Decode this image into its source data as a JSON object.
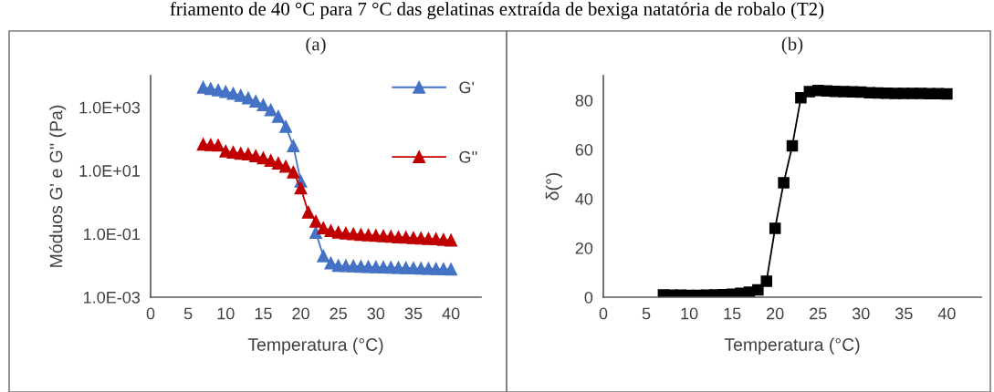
{
  "chart_data": [
    {
      "type": "line",
      "title": "(a)",
      "xlabel": "Temperatura (°C)",
      "ylabel": "Móduos G' e G'' (Pa)",
      "annotations": [
        "friamento de 40 °C para 7 °C das gelatinas extraída de bexiga natatória de robalo (T2)"
      ],
      "x": [
        7,
        8,
        9,
        10,
        11,
        12,
        13,
        14,
        15,
        16,
        17,
        18,
        19,
        20,
        21,
        22,
        23,
        24,
        25,
        26,
        27,
        28,
        29,
        30,
        31,
        32,
        33,
        34,
        35,
        36,
        37,
        38,
        39,
        40
      ],
      "series": [
        {
          "name": "G'",
          "color": "#4472c4",
          "values": [
            4300,
            3900,
            3500,
            3100,
            2750,
            2340,
            1950,
            1550,
            1200,
            830,
            510,
            245,
            60,
            4.6,
            null,
            0.11,
            0.02,
            0.012,
            0.01,
            0.0098,
            0.0096,
            0.0094,
            0.0092,
            0.009,
            0.0089,
            0.0087,
            0.0086,
            0.0084,
            0.0083,
            0.0082,
            0.008,
            0.0079,
            0.0078,
            0.0076
          ]
        },
        {
          "name": "G''",
          "color": "#c00000",
          "values": [
            68,
            65,
            63,
            41,
            38,
            35,
            33,
            29,
            25,
            21,
            17,
            13.5,
            8.9,
            2.8,
            0.48,
            0.25,
            0.155,
            0.126,
            0.112,
            0.105,
            0.1,
            0.096,
            0.092,
            0.089,
            0.086,
            0.083,
            0.08,
            0.078,
            0.075,
            0.073,
            0.071,
            0.069,
            0.066,
            0.063
          ]
        }
      ],
      "log": "y",
      "xlim": [
        0,
        44
      ],
      "xticks": [
        0,
        5,
        10,
        15,
        20,
        25,
        30,
        35,
        40
      ],
      "ylim": [
        0.001,
        10000
      ],
      "yticks": [
        {
          "value": 0.001,
          "label": "1.0E-03"
        },
        {
          "value": 0.1,
          "label": "1.0E-01"
        },
        {
          "value": 10,
          "label": "1.0E+01"
        },
        {
          "value": 1000,
          "label": "1.0E+03"
        }
      ],
      "marker": "triangle",
      "line_style": "solid",
      "grid": false,
      "legend": "top right"
    },
    {
      "type": "line",
      "title": "(b)",
      "xlabel": "Temperatura (°C)",
      "ylabel": "δ(°)",
      "x": [
        7,
        8,
        9,
        10,
        11,
        12,
        13,
        14,
        15,
        16,
        17,
        18,
        19,
        20,
        21,
        22,
        23,
        24,
        25,
        26,
        27,
        28,
        29,
        30,
        31,
        32,
        33,
        34,
        35,
        36,
        37,
        38,
        39,
        40
      ],
      "series": [
        {
          "color": "#000000",
          "values": [
            0.9,
            0.8,
            0.8,
            0.7,
            0.7,
            0.8,
            0.9,
            1.0,
            1.2,
            1.6,
            2.0,
            3,
            6.5,
            28,
            46.5,
            61.5,
            81,
            83.5,
            84,
            83.8,
            83.6,
            83.5,
            83.4,
            83.3,
            83.1,
            83,
            82.9,
            82.8,
            82.8,
            82.8,
            82.8,
            82.7,
            82.7,
            82.6
          ]
        }
      ],
      "xlim": [
        0,
        44
      ],
      "xticks": [
        0,
        5,
        10,
        15,
        20,
        25,
        30,
        35,
        40
      ],
      "ylim": [
        0,
        90
      ],
      "yticks": [
        0,
        20,
        40,
        60,
        80
      ],
      "marker": "square",
      "line_style": "solid",
      "grid": false
    }
  ]
}
